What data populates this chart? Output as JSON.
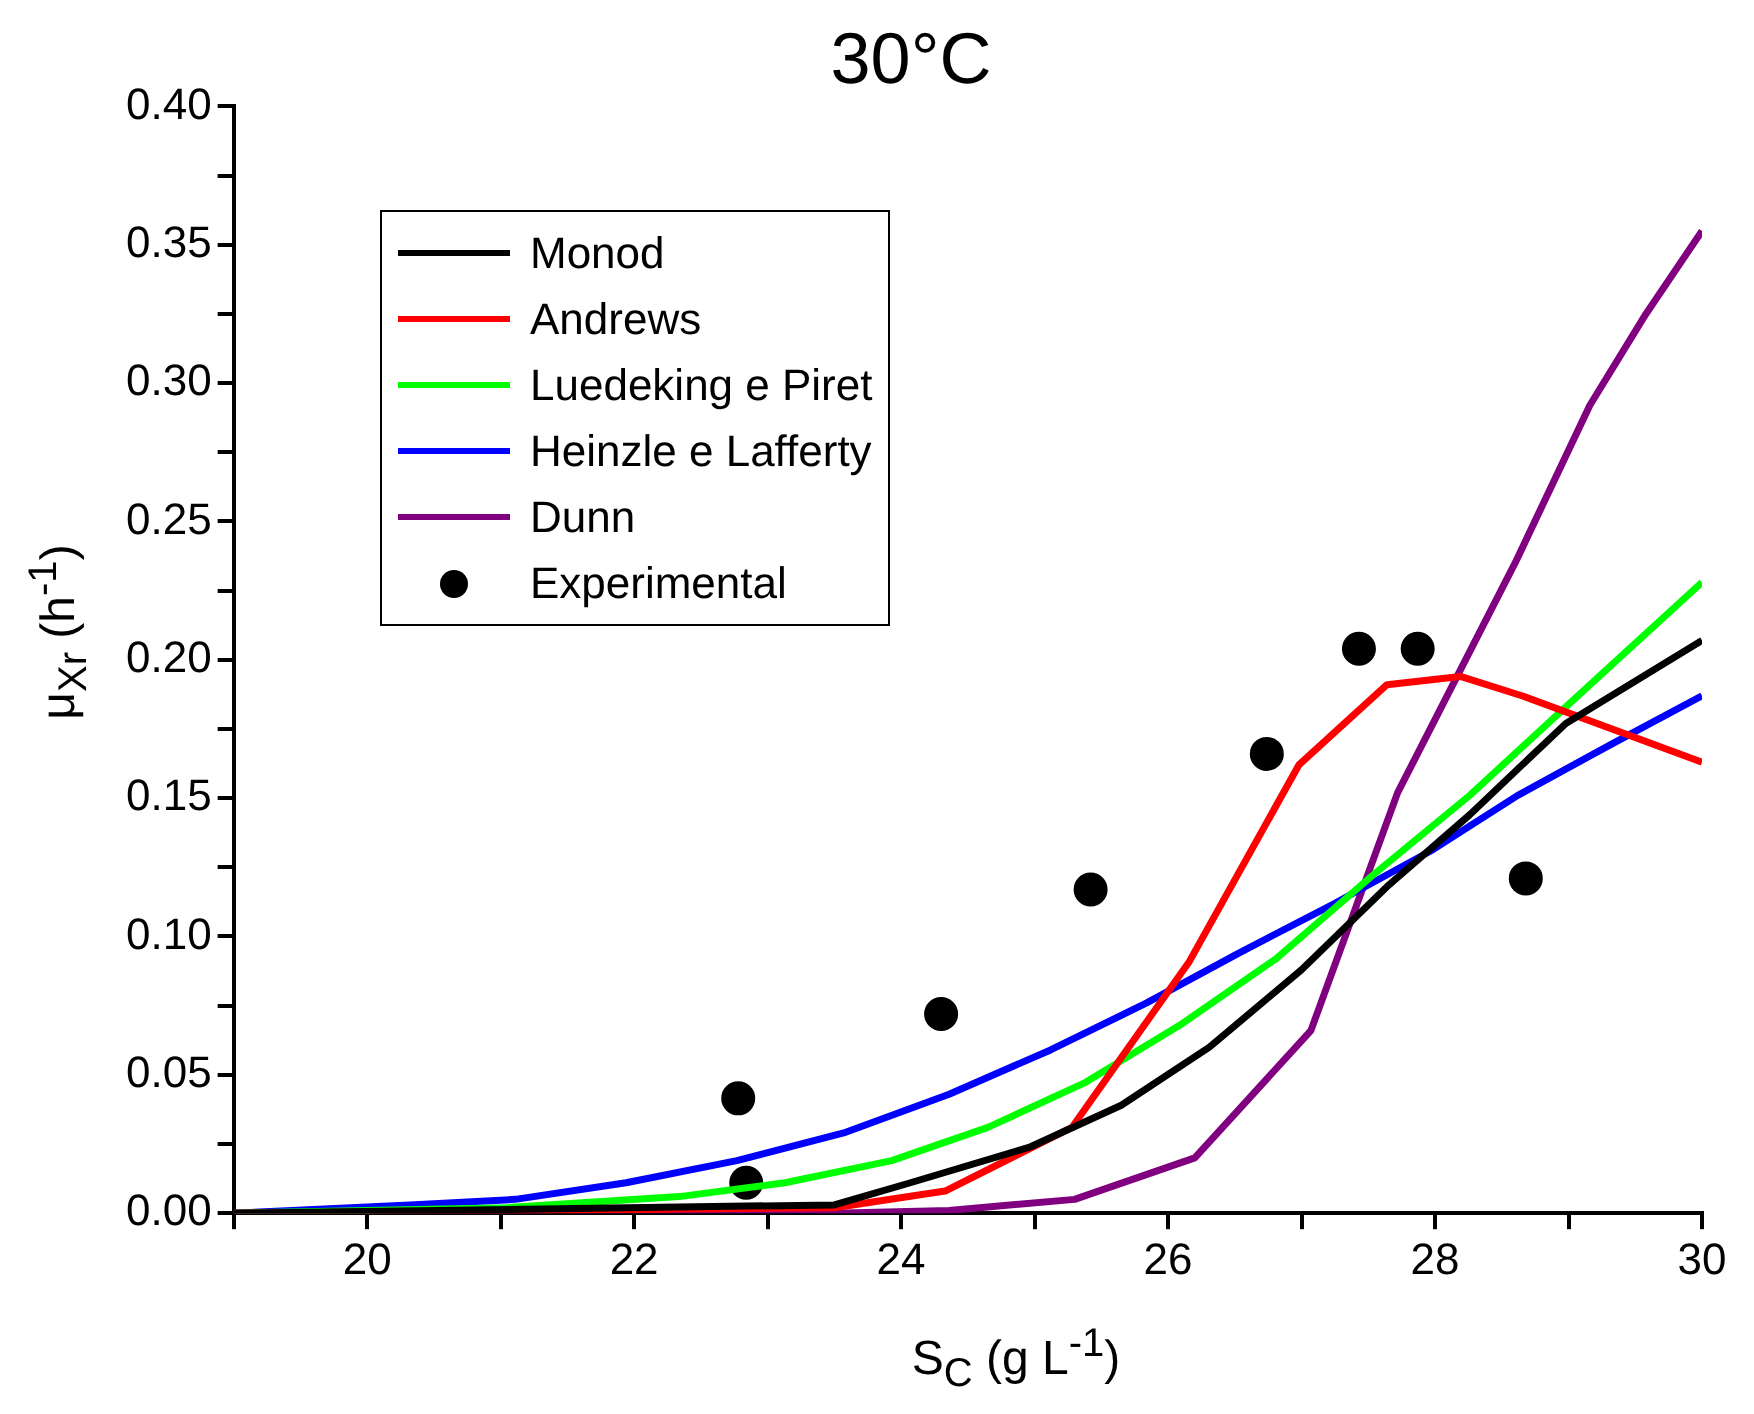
{
  "chart_data": {
    "type": "line",
    "title": "30°C",
    "xlabel": "S$_{C}$ (g L$^{-1}$)",
    "ylabel": "μ$_{Xr}$ (h$^{-1}$)",
    "xlim": [
      19,
      30
    ],
    "ylim": [
      0,
      0.4
    ],
    "xticks": [
      {
        "value": 19,
        "label": null
      },
      20,
      {
        "value": 21,
        "label": null
      },
      22,
      {
        "value": 23,
        "label": null
      },
      24,
      {
        "value": 25,
        "label": null
      },
      26,
      {
        "value": 27,
        "label": null
      },
      28,
      {
        "value": 29,
        "label": null
      },
      30
    ],
    "yticks": [
      {
        "value": 0,
        "label": "0.00"
      },
      {
        "value": 0.025,
        "label": null
      },
      {
        "value": 0.05,
        "label": "0.05"
      },
      {
        "value": 0.075,
        "label": null
      },
      {
        "value": 0.1,
        "label": "0.10"
      },
      {
        "value": 0.125,
        "label": null
      },
      {
        "value": 0.15,
        "label": "0.15"
      },
      {
        "value": 0.175,
        "label": null
      },
      {
        "value": 0.2,
        "label": "0.20"
      },
      {
        "value": 0.225,
        "label": null
      },
      {
        "value": 0.25,
        "label": "0.25"
      },
      {
        "value": 0.275,
        "label": null
      },
      {
        "value": 0.3,
        "label": "0.30"
      },
      {
        "value": 0.325,
        "label": null
      },
      {
        "value": 0.35,
        "label": "0.35"
      },
      {
        "value": 0.375,
        "label": null
      },
      {
        "value": 0.4,
        "label": "0.40"
      }
    ],
    "grid": false,
    "legend": "top left",
    "marker": "none",
    "line_style": "solid",
    "series": [
      {
        "name": "Monod",
        "color": "#000000",
        "x": [
          19,
          23.5,
          24.07,
          24.97,
          25.65,
          26.31,
          27.0,
          27.64,
          28.26,
          28.98,
          30
        ],
        "values": [
          0,
          0.003,
          0.011,
          0.024,
          0.039,
          0.06,
          0.088,
          0.118,
          0.144,
          0.177,
          0.207
        ]
      },
      {
        "name": "Andrews",
        "color": "#ff0000",
        "x": [
          19,
          23.5,
          24.33,
          25.28,
          26.16,
          26.98,
          27.64,
          28.19,
          28.65,
          30
        ],
        "values": [
          0,
          0.002,
          0.008,
          0.031,
          0.091,
          0.162,
          0.191,
          0.194,
          0.187,
          0.163
        ]
      },
      {
        "name": "Luedeking e Piret",
        "color": "#00ff00",
        "x": [
          19,
          21.04,
          22.34,
          23.13,
          23.93,
          24.65,
          25.37,
          26.09,
          26.81,
          27.53,
          28.26,
          28.98,
          30
        ],
        "values": [
          0,
          0.002,
          0.006,
          0.011,
          0.019,
          0.031,
          0.047,
          0.068,
          0.092,
          0.122,
          0.151,
          0.183,
          0.228
        ]
      },
      {
        "name": "Heinzle e Lafferty",
        "color": "#0000ff",
        "x": [
          19,
          20.32,
          21.11,
          21.94,
          22.77,
          23.57,
          24.36,
          25.12,
          25.84,
          26.53,
          27.25,
          27.97,
          28.62,
          29.34,
          30
        ],
        "values": [
          0,
          0.003,
          0.005,
          0.011,
          0.019,
          0.029,
          0.043,
          0.059,
          0.076,
          0.094,
          0.112,
          0.131,
          0.151,
          0.17,
          0.187
        ]
      },
      {
        "name": "Dunn",
        "color": "#800080",
        "x": [
          19,
          23.5,
          24.36,
          25.3,
          26.2,
          27.07,
          27.72,
          28.6,
          29.16,
          29.58,
          30
        ],
        "values": [
          0,
          0,
          0.001,
          0.005,
          0.02,
          0.066,
          0.152,
          0.235,
          0.292,
          0.325,
          0.355
        ]
      },
      {
        "name": "Experimental",
        "type": "scatter",
        "marker": "circle",
        "color": "#000000",
        "x": [
          22.78,
          22.84,
          24.3,
          25.42,
          26.74,
          27.43,
          27.87,
          28.68
        ],
        "values": [
          0.0415,
          0.011,
          0.072,
          0.117,
          0.166,
          0.204,
          0.204,
          0.121
        ]
      }
    ]
  }
}
